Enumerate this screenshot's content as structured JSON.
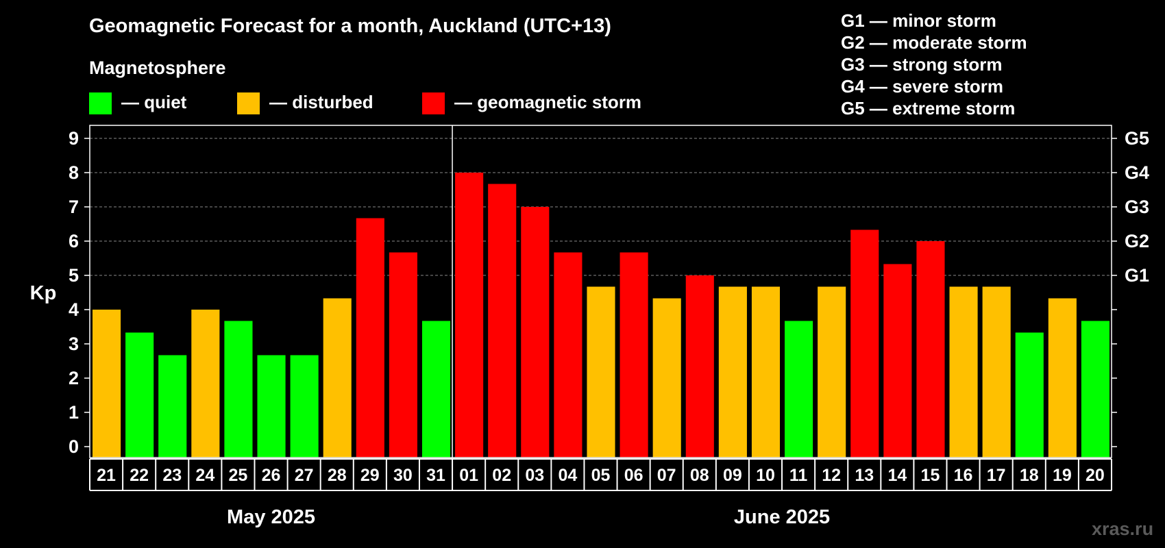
{
  "title": "Geomagnetic Forecast for a month, Auckland (UTC+13)",
  "subtitle": "Magnetosphere",
  "legend": [
    {
      "label": "— quiet",
      "color": "#00ff00"
    },
    {
      "label": "— disturbed",
      "color": "#ffc000"
    },
    {
      "label": "— geomagnetic storm",
      "color": "#ff0000"
    }
  ],
  "g_scale": [
    "G1 — minor storm",
    "G2 — moderate storm",
    "G3 — strong storm",
    "G4 — severe storm",
    "G5 — extreme storm"
  ],
  "watermark": "xras.ru",
  "chart_data": {
    "type": "bar",
    "title": "Geomagnetic Forecast for a month, Auckland (UTC+13)",
    "ylabel": "Kp",
    "ylim": [
      0,
      9
    ],
    "yticks": [
      0,
      1,
      2,
      3,
      4,
      5,
      6,
      7,
      8,
      9
    ],
    "grid": true,
    "right_axis_labels": [
      {
        "y": 5,
        "label": "G1"
      },
      {
        "y": 6,
        "label": "G2"
      },
      {
        "y": 7,
        "label": "G3"
      },
      {
        "y": 8,
        "label": "G4"
      },
      {
        "y": 9,
        "label": "G5"
      }
    ],
    "categories": [
      "21",
      "22",
      "23",
      "24",
      "25",
      "26",
      "27",
      "28",
      "29",
      "30",
      "31",
      "01",
      "02",
      "03",
      "04",
      "05",
      "06",
      "07",
      "08",
      "09",
      "10",
      "11",
      "12",
      "13",
      "14",
      "15",
      "16",
      "17",
      "18",
      "19",
      "20"
    ],
    "values": [
      4.0,
      3.33,
      2.67,
      4.0,
      3.67,
      2.67,
      2.67,
      4.33,
      6.67,
      5.67,
      3.67,
      8.0,
      7.67,
      7.0,
      5.67,
      4.67,
      5.67,
      4.33,
      5.0,
      4.67,
      4.67,
      3.67,
      4.67,
      6.33,
      5.33,
      6.0,
      4.67,
      4.67,
      3.33,
      4.33,
      3.67
    ],
    "status": [
      "disturbed",
      "quiet",
      "quiet",
      "disturbed",
      "quiet",
      "quiet",
      "quiet",
      "disturbed",
      "storm",
      "storm",
      "quiet",
      "storm",
      "storm",
      "storm",
      "storm",
      "disturbed",
      "storm",
      "disturbed",
      "storm",
      "disturbed",
      "disturbed",
      "quiet",
      "disturbed",
      "storm",
      "storm",
      "storm",
      "disturbed",
      "disturbed",
      "quiet",
      "disturbed",
      "quiet"
    ],
    "status_colors": {
      "quiet": "#00ff00",
      "disturbed": "#ffc000",
      "storm": "#ff0000"
    },
    "months": [
      {
        "label": "May 2025",
        "days": 11
      },
      {
        "label": "June 2025",
        "days": 20
      }
    ]
  }
}
